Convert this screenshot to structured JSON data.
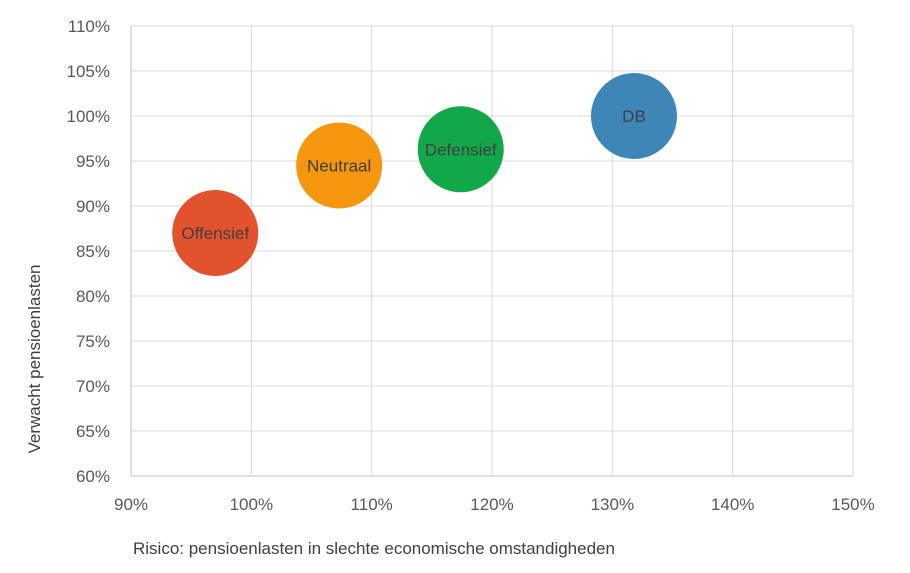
{
  "chart_data": {
    "type": "scatter",
    "title": "",
    "xlabel": "Risico: pensioenlasten in slechte economische omstandigheden",
    "ylabel": "Verwacht pensioenlasten",
    "xlim": [
      90,
      150
    ],
    "ylim": [
      60,
      110
    ],
    "x_ticks": [
      "90%",
      "100%",
      "110%",
      "120%",
      "130%",
      "140%",
      "150%"
    ],
    "y_ticks": [
      "110%",
      "105%",
      "100%",
      "95%",
      "90%",
      "85%",
      "80%",
      "75%",
      "70%",
      "65%",
      "60%"
    ],
    "x_tick_values": [
      90,
      100,
      110,
      120,
      130,
      140,
      150
    ],
    "y_tick_values": [
      110,
      105,
      100,
      95,
      90,
      85,
      80,
      75,
      70,
      65,
      60
    ],
    "grid": true,
    "legend": "none",
    "series": [
      {
        "name": "Offensief",
        "x": 97.0,
        "y": 87.0,
        "color": "#E2522C"
      },
      {
        "name": "Neutraal",
        "x": 107.3,
        "y": 94.5,
        "color": "#F5960F"
      },
      {
        "name": "Defensief",
        "x": 117.4,
        "y": 96.3,
        "color": "#12A84A"
      },
      {
        "name": "DB",
        "x": 131.8,
        "y": 100.0,
        "color": "#3F86B8"
      }
    ]
  }
}
